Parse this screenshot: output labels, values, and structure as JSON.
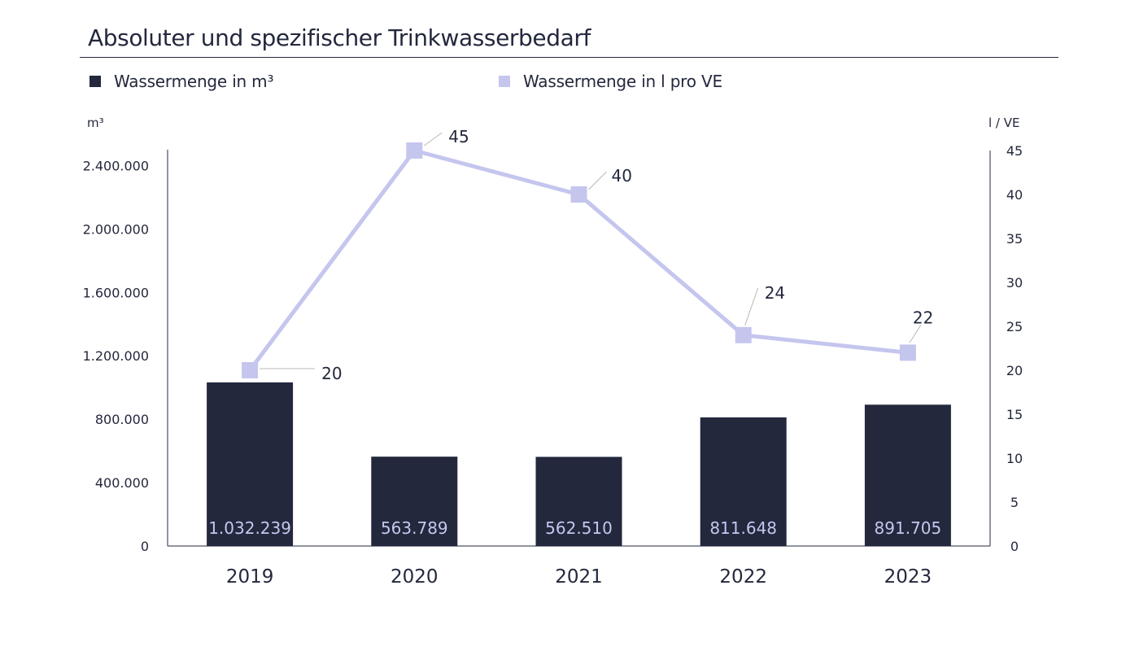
{
  "chart_data": {
    "type": "bar",
    "title": "Absoluter und spezifischer Trinkwasserbedarf",
    "categories": [
      "2019",
      "2020",
      "2021",
      "2022",
      "2023"
    ],
    "series": [
      {
        "name": "Wassermenge in m³",
        "type": "bar",
        "axis": "left",
        "values": [
          1032239,
          563789,
          562510,
          811648,
          891705
        ],
        "labels": [
          "1.032.239",
          "563.789",
          "562.510",
          "811.648",
          "891.705"
        ],
        "color": "#23283d"
      },
      {
        "name": "Wassermenge in l pro VE",
        "type": "line",
        "axis": "right",
        "values": [
          20,
          45,
          40,
          24,
          22
        ],
        "labels": [
          "20",
          "45",
          "40",
          "24",
          "22"
        ],
        "color": "#c5c6ee"
      }
    ],
    "y_left": {
      "unit": "m³",
      "ylim": [
        0,
        2500000
      ],
      "ticks": [
        0,
        400000,
        800000,
        1200000,
        1600000,
        2000000,
        2400000
      ],
      "tick_labels": [
        "0",
        "400.000",
        "800.000",
        "1.200.000",
        "1.600.000",
        "2.000.000",
        "2.400.000"
      ]
    },
    "y_right": {
      "unit": "l / VE",
      "ylim": [
        0,
        45
      ],
      "ticks": [
        0,
        5,
        10,
        15,
        20,
        25,
        30,
        35,
        40,
        45
      ],
      "tick_labels": [
        "0",
        "5",
        "10",
        "15",
        "20",
        "25",
        "30",
        "35",
        "40",
        "45"
      ]
    },
    "legend_position": "top-left",
    "grid": false
  }
}
